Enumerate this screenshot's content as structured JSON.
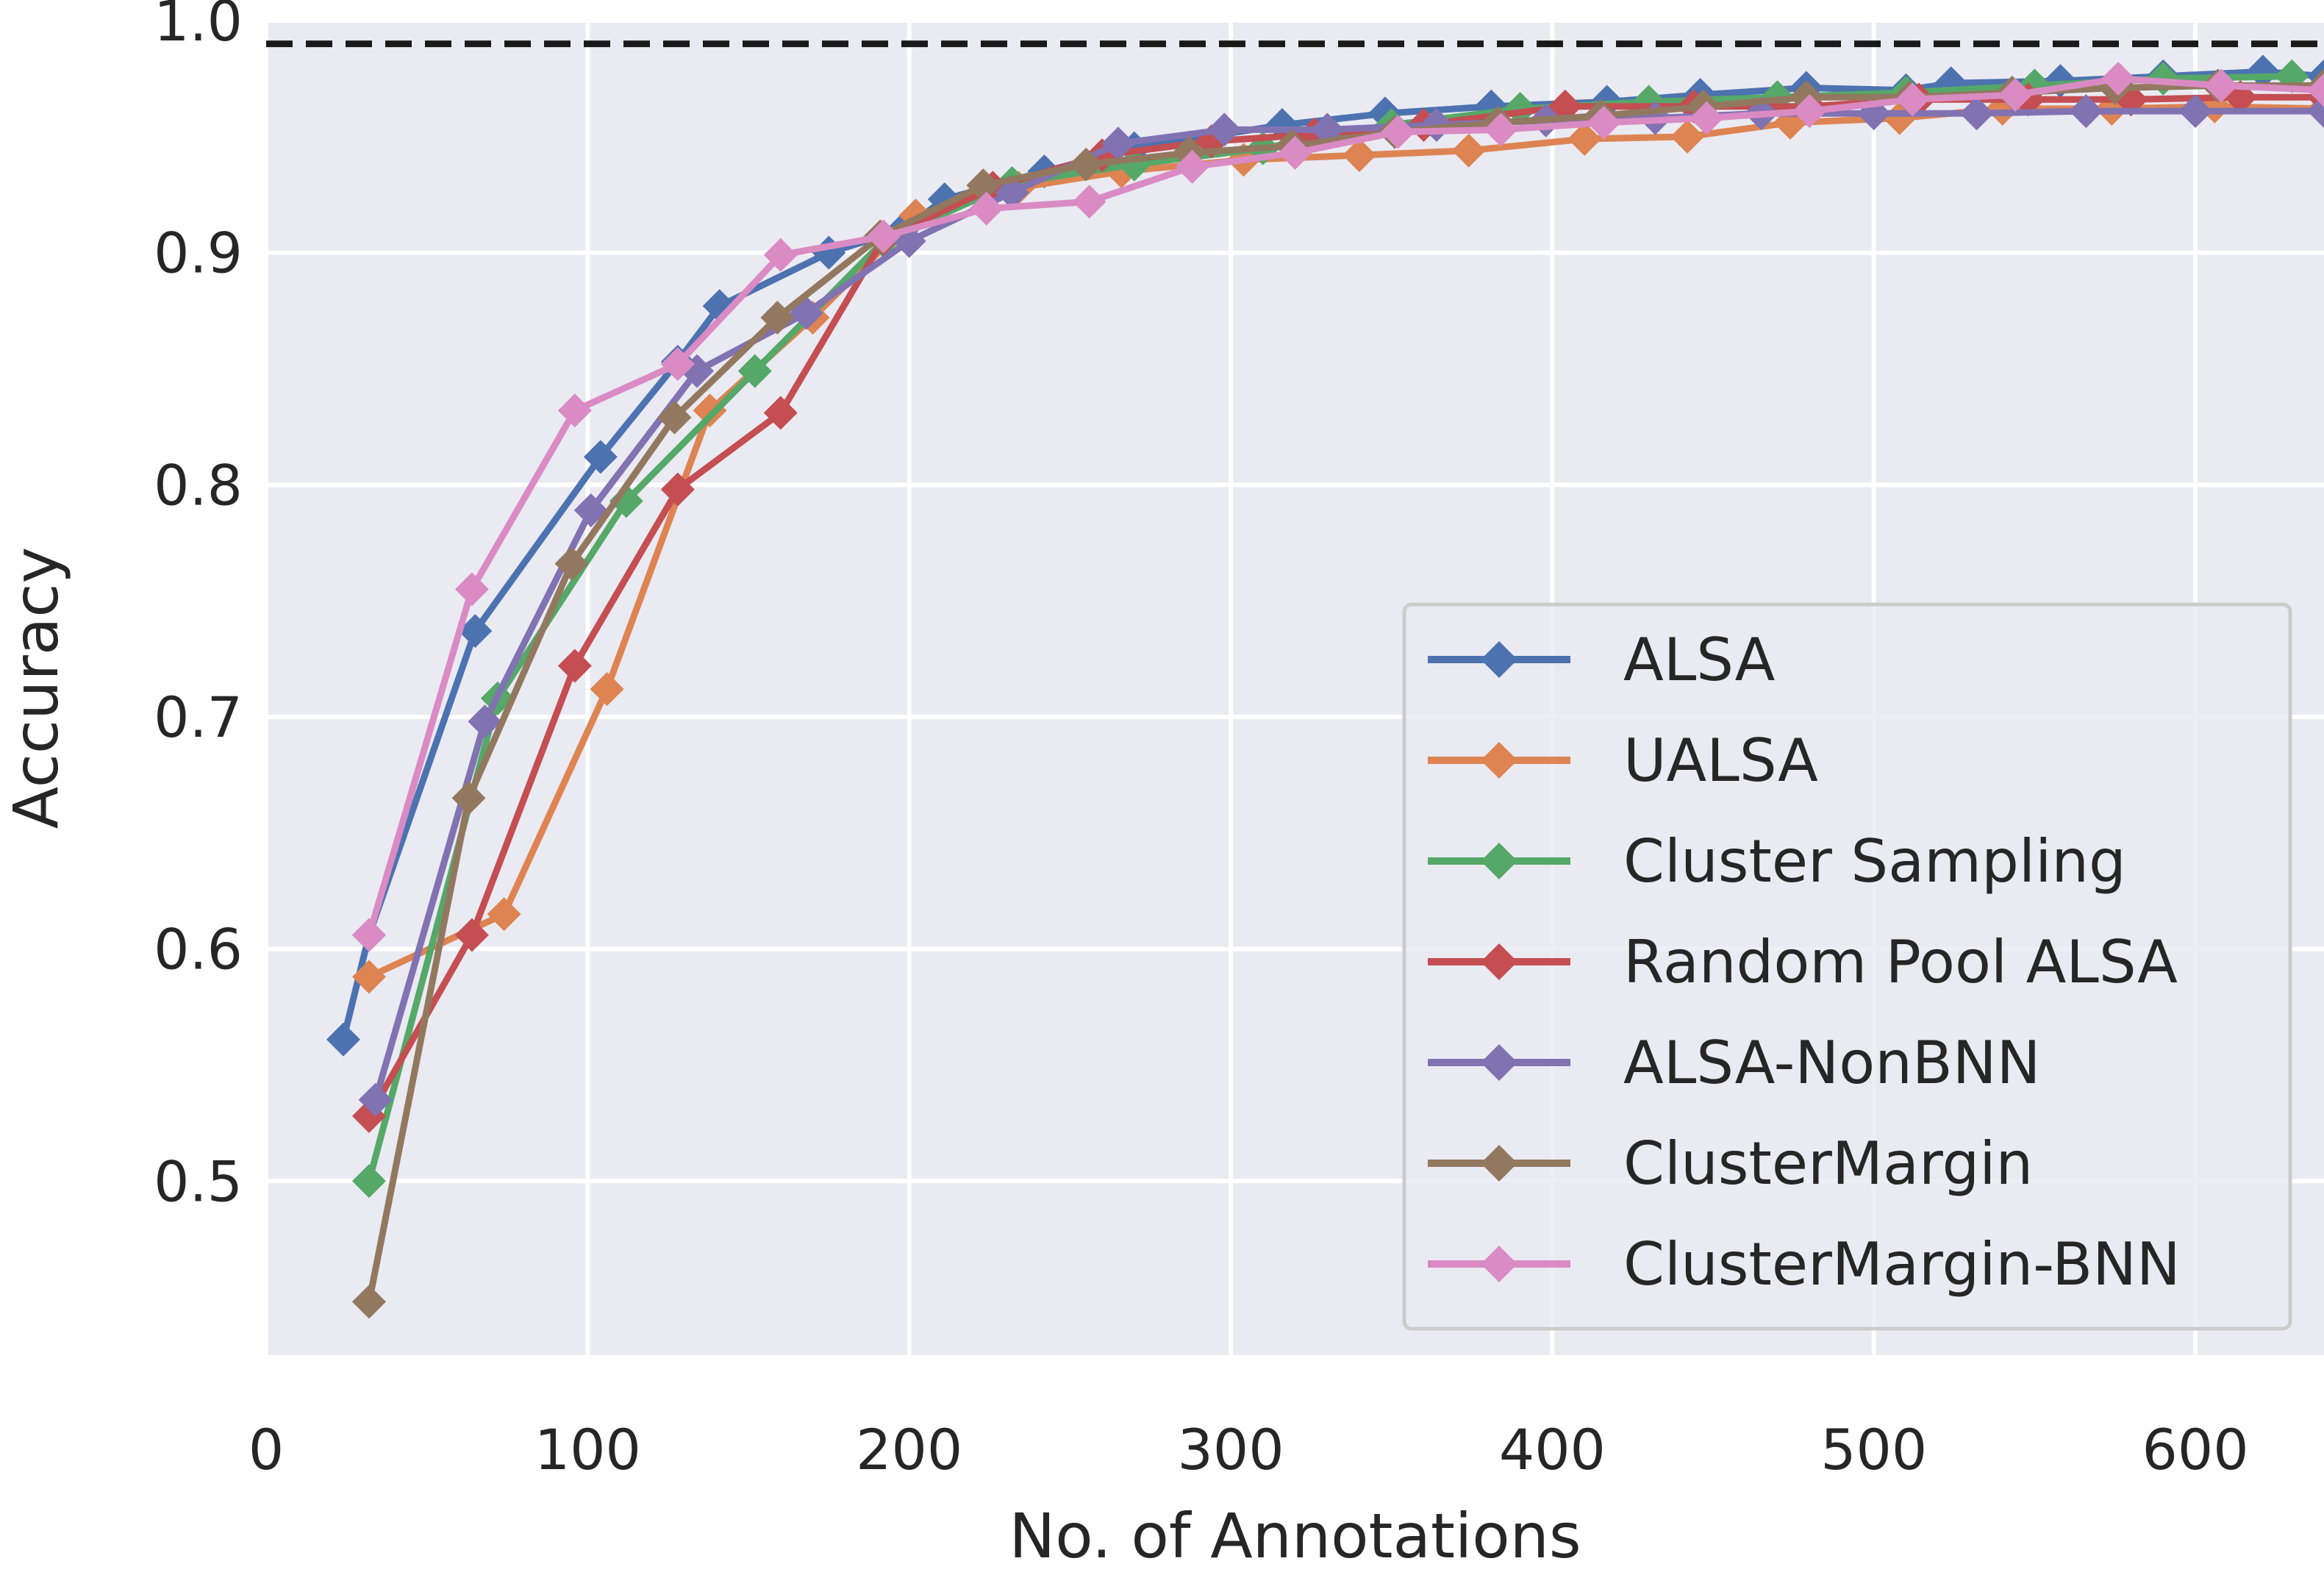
{
  "chart_data": {
    "type": "line",
    "title": "",
    "xlabel": "No. of Annotations",
    "ylabel": "Accuracy",
    "xlim": [
      0,
      640
    ],
    "ylim": [
      0.425,
      1.0
    ],
    "xticks": [
      0,
      100,
      200,
      300,
      400,
      500,
      600
    ],
    "xtick_labels": [
      "0",
      "100",
      "200",
      "300",
      "400",
      "500",
      "600"
    ],
    "yticks": [
      0.5,
      0.6,
      0.7,
      0.8,
      0.9,
      1.0
    ],
    "ytick_labels": [
      "0.5",
      "0.6",
      "0.7",
      "0.8",
      "0.9",
      "1.0"
    ],
    "grid": true,
    "legend_position": "bottom-right",
    "reference_line": {
      "y": 0.99,
      "style": "dashed",
      "color": "#1a1a1a"
    },
    "colors": {
      "background": "#eaeaf2",
      "grid": "#ffffff",
      "text": "#262626"
    },
    "series": [
      {
        "name": "ALSA",
        "color": "#4c72b0",
        "x": [
          24,
          32,
          65,
          104,
          128,
          141,
          175,
          198,
          211,
          242,
          270,
          316,
          348,
          381,
          417,
          446,
          479,
          510,
          524,
          558,
          590,
          621,
          640
        ],
        "y": [
          0.561,
          0.606,
          0.737,
          0.812,
          0.853,
          0.877,
          0.9,
          0.91,
          0.923,
          0.935,
          0.945,
          0.955,
          0.96,
          0.963,
          0.965,
          0.968,
          0.971,
          0.97,
          0.973,
          0.974,
          0.976,
          0.978,
          0.976
        ]
      },
      {
        "name": "UALSA",
        "color": "#dd8452",
        "x": [
          32,
          74,
          106,
          138,
          170,
          202,
          234,
          266,
          304,
          340,
          374,
          410,
          442,
          474,
          508,
          540,
          574,
          606,
          640
        ],
        "y": [
          0.588,
          0.615,
          0.712,
          0.832,
          0.872,
          0.916,
          0.928,
          0.935,
          0.94,
          0.942,
          0.944,
          0.949,
          0.95,
          0.956,
          0.958,
          0.962,
          0.962,
          0.963,
          0.962
        ]
      },
      {
        "name": "Cluster Sampling",
        "color": "#55a868",
        "x": [
          32,
          72,
          112,
          152,
          192,
          232,
          270,
          310,
          350,
          390,
          430,
          470,
          510,
          550,
          590,
          630
        ],
        "y": [
          0.5,
          0.708,
          0.793,
          0.849,
          0.905,
          0.93,
          0.938,
          0.945,
          0.955,
          0.962,
          0.965,
          0.967,
          0.969,
          0.972,
          0.975,
          0.976
        ]
      },
      {
        "name": "Random Pool ALSA",
        "color": "#c44e52",
        "x": [
          32,
          64,
          96,
          128,
          160,
          192,
          226,
          260,
          294,
          326,
          360,
          404,
          444,
          480,
          514,
          548,
          580,
          614,
          640
        ],
        "y": [
          0.528,
          0.606,
          0.722,
          0.798,
          0.831,
          0.906,
          0.928,
          0.942,
          0.948,
          0.951,
          0.955,
          0.963,
          0.963,
          0.963,
          0.966,
          0.966,
          0.966,
          0.967,
          0.967
        ]
      },
      {
        "name": "ALSA-NonBNN",
        "color": "#8172b2",
        "x": [
          34,
          68,
          101,
          134,
          168,
          200,
          232,
          265,
          298,
          330,
          364,
          398,
          432,
          465,
          500,
          532,
          566,
          600,
          640
        ],
        "y": [
          0.535,
          0.698,
          0.789,
          0.849,
          0.874,
          0.905,
          0.926,
          0.947,
          0.953,
          0.953,
          0.955,
          0.957,
          0.958,
          0.96,
          0.96,
          0.96,
          0.961,
          0.961,
          0.961
        ]
      },
      {
        "name": "ClusterMargin",
        "color": "#937860",
        "x": [
          32,
          63,
          95,
          127,
          159,
          191,
          223,
          255,
          287,
          319,
          351,
          383,
          415,
          447,
          479,
          511,
          543,
          575,
          607,
          640
        ],
        "y": [
          0.448,
          0.665,
          0.766,
          0.829,
          0.872,
          0.907,
          0.929,
          0.938,
          0.943,
          0.946,
          0.952,
          0.956,
          0.959,
          0.963,
          0.967,
          0.967,
          0.969,
          0.971,
          0.972,
          0.972
        ]
      },
      {
        "name": "ClusterMargin-BNN",
        "color": "#da8bc3",
        "x": [
          32,
          64,
          96,
          128,
          160,
          192,
          224,
          256,
          288,
          320,
          352,
          384,
          416,
          448,
          480,
          512,
          544,
          576,
          608,
          640
        ],
        "y": [
          0.606,
          0.755,
          0.832,
          0.852,
          0.899,
          0.907,
          0.919,
          0.922,
          0.937,
          0.943,
          0.952,
          0.953,
          0.956,
          0.958,
          0.961,
          0.966,
          0.968,
          0.975,
          0.972,
          0.97
        ]
      }
    ]
  }
}
